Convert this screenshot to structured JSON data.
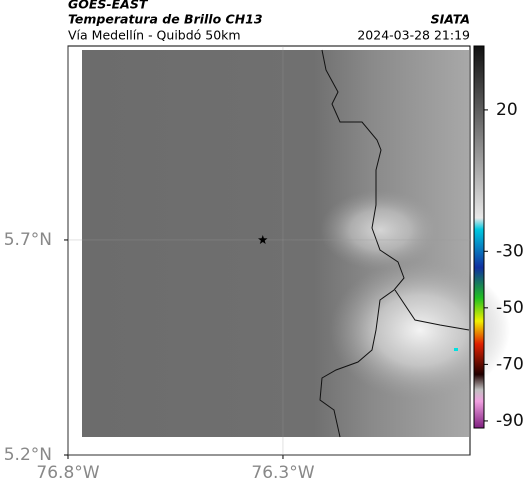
{
  "header": {
    "source": "GOES-EAST",
    "product": "Temperatura de Brillo CH13",
    "brand": "SIATA",
    "region": "Vía Medellín - Quibdó 50km",
    "timestamp": "2024-03-28 21:19"
  },
  "map": {
    "xlim": [
      -76.8,
      -75.865
    ],
    "ylim": [
      5.2,
      6.151
    ],
    "xticks": [
      {
        "value": -76.8,
        "label": "76.8°W"
      },
      {
        "value": -76.3,
        "label": "76.3°W"
      }
    ],
    "yticks": [
      {
        "value": 5.2,
        "label": "5.2°N"
      },
      {
        "value": 5.7,
        "label": "5.7°N"
      }
    ],
    "grid": true,
    "marker": {
      "lon": -76.347,
      "lat": 5.7
    }
  },
  "colorbar": {
    "clim": [
      -92.5,
      42.6
    ],
    "ticks": [
      20,
      -30,
      -50,
      -70,
      -90
    ]
  }
}
